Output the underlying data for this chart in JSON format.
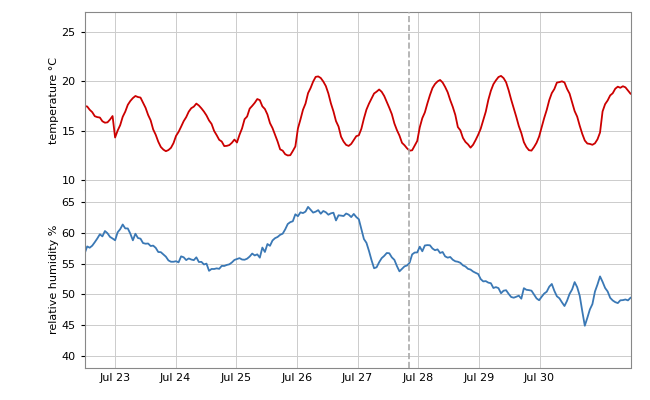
{
  "temp_ylabel": "temperature °C",
  "hum_ylabel": "relative humidity %",
  "temp_ylim": [
    9,
    27
  ],
  "hum_ylim": [
    38,
    67
  ],
  "temp_yticks": [
    10,
    15,
    20,
    25
  ],
  "hum_yticks": [
    40,
    45,
    50,
    55,
    60,
    65
  ],
  "temp_color": "#cc0000",
  "hum_color": "#3a78b5",
  "vline_color": "#aaaaaa",
  "grid_color": "#cccccc",
  "background_color": "#ffffff",
  "spine_color": "#888888",
  "tick_positions": [
    1,
    2,
    3,
    4,
    5,
    6,
    7,
    8
  ],
  "tick_labels": [
    "Jul 23",
    "Jul 24",
    "Jul 25",
    "Jul 26",
    "Jul 27",
    "Jul 28",
    "Jul 29",
    "Jul 30"
  ],
  "xlim": [
    0.5,
    9.5
  ],
  "vline_pos": 5.85,
  "figsize": [
    6.5,
    4.0
  ],
  "dpi": 100
}
